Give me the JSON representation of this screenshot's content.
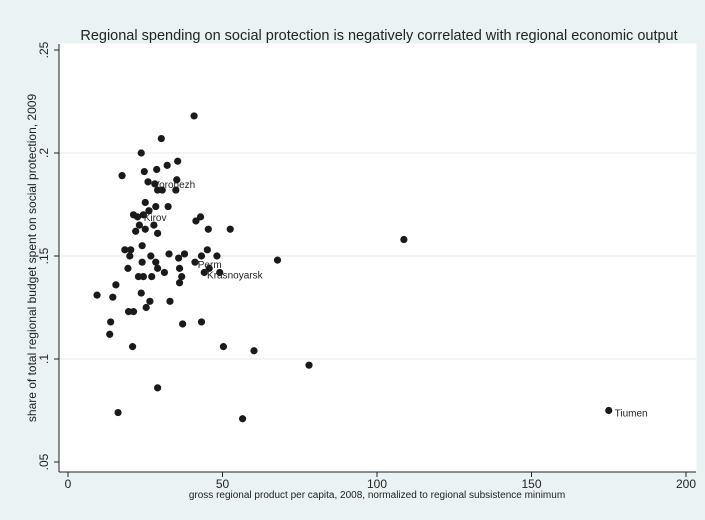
{
  "chart_data": {
    "type": "scatter",
    "title": "Regional spending on social protection is negatively correlated with regional economic output",
    "xlabel": "gross regional product per capita, 2008, normalized to regional subsistence minimum",
    "ylabel": "share of total regional budget spent on social protection, 2009",
    "xlim": [
      0,
      200
    ],
    "ylim": [
      0.05,
      0.25
    ],
    "xticks": [
      0,
      50,
      100,
      150,
      200
    ],
    "xtick_labels": [
      "0",
      "50",
      "100",
      "150",
      "200"
    ],
    "yticks": [
      0.05,
      0.1,
      0.15,
      0.2,
      0.25
    ],
    "ytick_labels": [
      ".05",
      ".1",
      ".15",
      ".2",
      ".25"
    ],
    "grid": "horizontal",
    "colors": {
      "background": "#eaf2f3",
      "plot_background": "#ffffff",
      "marker": "#1a1a1a",
      "grid": "#e2e8ea"
    },
    "points": [
      {
        "x": 9.4,
        "y": 0.131
      },
      {
        "x": 13.5,
        "y": 0.112
      },
      {
        "x": 13.8,
        "y": 0.118
      },
      {
        "x": 14.5,
        "y": 0.13
      },
      {
        "x": 15.5,
        "y": 0.136
      },
      {
        "x": 16.2,
        "y": 0.074
      },
      {
        "x": 17.5,
        "y": 0.189
      },
      {
        "x": 18.4,
        "y": 0.153
      },
      {
        "x": 19.4,
        "y": 0.144
      },
      {
        "x": 19.6,
        "y": 0.123
      },
      {
        "x": 20.0,
        "y": 0.15
      },
      {
        "x": 20.3,
        "y": 0.153
      },
      {
        "x": 20.9,
        "y": 0.106
      },
      {
        "x": 21.2,
        "y": 0.17
      },
      {
        "x": 21.2,
        "y": 0.123
      },
      {
        "x": 21.9,
        "y": 0.162
      },
      {
        "x": 22.5,
        "y": 0.169
      },
      {
        "x": 22.8,
        "y": 0.14
      },
      {
        "x": 23.1,
        "y": 0.165
      },
      {
        "x": 23.7,
        "y": 0.132
      },
      {
        "x": 23.7,
        "y": 0.2
      },
      {
        "x": 24.0,
        "y": 0.147
      },
      {
        "x": 24.0,
        "y": 0.155
      },
      {
        "x": 24.4,
        "y": 0.17
      },
      {
        "x": 24.4,
        "y": 0.14
      },
      {
        "x": 24.7,
        "y": 0.191
      },
      {
        "x": 25.0,
        "y": 0.176
      },
      {
        "x": 25.0,
        "y": 0.163
      },
      {
        "x": 25.3,
        "y": 0.125
      },
      {
        "x": 25.9,
        "y": 0.186
      },
      {
        "x": 26.2,
        "y": 0.172
      },
      {
        "x": 26.5,
        "y": 0.128
      },
      {
        "x": 26.8,
        "y": 0.15
      },
      {
        "x": 27.1,
        "y": 0.14
      },
      {
        "x": 27.8,
        "y": 0.165
      },
      {
        "x": 28.1,
        "y": 0.185
      },
      {
        "x": 28.4,
        "y": 0.174
      },
      {
        "x": 28.4,
        "y": 0.147
      },
      {
        "x": 28.7,
        "y": 0.192
      },
      {
        "x": 29.0,
        "y": 0.182
      },
      {
        "x": 29.0,
        "y": 0.161
      },
      {
        "x": 29.0,
        "y": 0.144
      },
      {
        "x": 29.0,
        "y": 0.086
      },
      {
        "x": 30.2,
        "y": 0.207
      },
      {
        "x": 30.5,
        "y": 0.182
      },
      {
        "x": 31.2,
        "y": 0.142
      },
      {
        "x": 32.1,
        "y": 0.194
      },
      {
        "x": 32.4,
        "y": 0.174
      },
      {
        "x": 32.7,
        "y": 0.151
      },
      {
        "x": 33.0,
        "y": 0.128
      },
      {
        "x": 34.9,
        "y": 0.182
      },
      {
        "x": 35.2,
        "y": 0.187
      },
      {
        "x": 35.5,
        "y": 0.196
      },
      {
        "x": 35.8,
        "y": 0.149
      },
      {
        "x": 36.1,
        "y": 0.144
      },
      {
        "x": 36.1,
        "y": 0.137
      },
      {
        "x": 36.8,
        "y": 0.14
      },
      {
        "x": 37.1,
        "y": 0.117
      },
      {
        "x": 37.7,
        "y": 0.151
      },
      {
        "x": 40.8,
        "y": 0.218
      },
      {
        "x": 41.1,
        "y": 0.147
      },
      {
        "x": 41.4,
        "y": 0.167
      },
      {
        "x": 42.9,
        "y": 0.169
      },
      {
        "x": 43.2,
        "y": 0.15
      },
      {
        "x": 43.2,
        "y": 0.118
      },
      {
        "x": 44.1,
        "y": 0.142
      },
      {
        "x": 45.1,
        "y": 0.153
      },
      {
        "x": 45.4,
        "y": 0.163
      },
      {
        "x": 45.7,
        "y": 0.144
      },
      {
        "x": 48.2,
        "y": 0.15
      },
      {
        "x": 49.1,
        "y": 0.142
      },
      {
        "x": 50.3,
        "y": 0.106
      },
      {
        "x": 52.5,
        "y": 0.163
      },
      {
        "x": 56.5,
        "y": 0.071
      },
      {
        "x": 60.2,
        "y": 0.104
      },
      {
        "x": 67.8,
        "y": 0.148
      },
      {
        "x": 78.0,
        "y": 0.097
      },
      {
        "x": 108.7,
        "y": 0.158
      },
      {
        "x": 175.0,
        "y": 0.075
      }
    ],
    "annotations": [
      {
        "text": "Voronezh",
        "x": 27.5,
        "y": 0.185
      },
      {
        "text": "Kirov",
        "x": 24.5,
        "y": 0.169
      },
      {
        "text": "Perm",
        "x": 42.0,
        "y": 0.146
      },
      {
        "text": "Krasnoyarsk",
        "x": 45.0,
        "y": 0.141
      },
      {
        "text": "Tiumen",
        "x": 176.9,
        "y": 0.074
      }
    ]
  }
}
